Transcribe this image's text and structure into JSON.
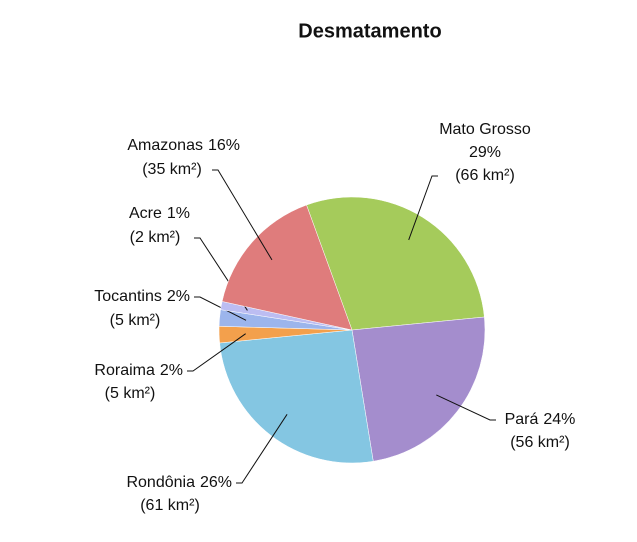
{
  "chart_data": {
    "type": "pie",
    "title": "Desmatamento",
    "categories": [
      "Mato Grosso",
      "Pará",
      "Rondônia",
      "Roraima",
      "Tocantins",
      "Acre",
      "Amazonas"
    ],
    "values": [
      29,
      24,
      26,
      2,
      2,
      1,
      16
    ],
    "value_labels": [
      "29%",
      "24%",
      "26%",
      "2%",
      "2%",
      "1%",
      "16%"
    ],
    "area_labels": [
      "(66 km²)",
      "(56 km²)",
      "(61 km²)",
      "(5 km²)",
      "(5 km²)",
      "(2 km²)",
      "(35 km²)"
    ],
    "colors": [
      "#a5cb5b",
      "#a48dcd",
      "#84c6e2",
      "#f3a04c",
      "#9cb5ec",
      "#bcbdf2",
      "#df7c7c"
    ]
  }
}
